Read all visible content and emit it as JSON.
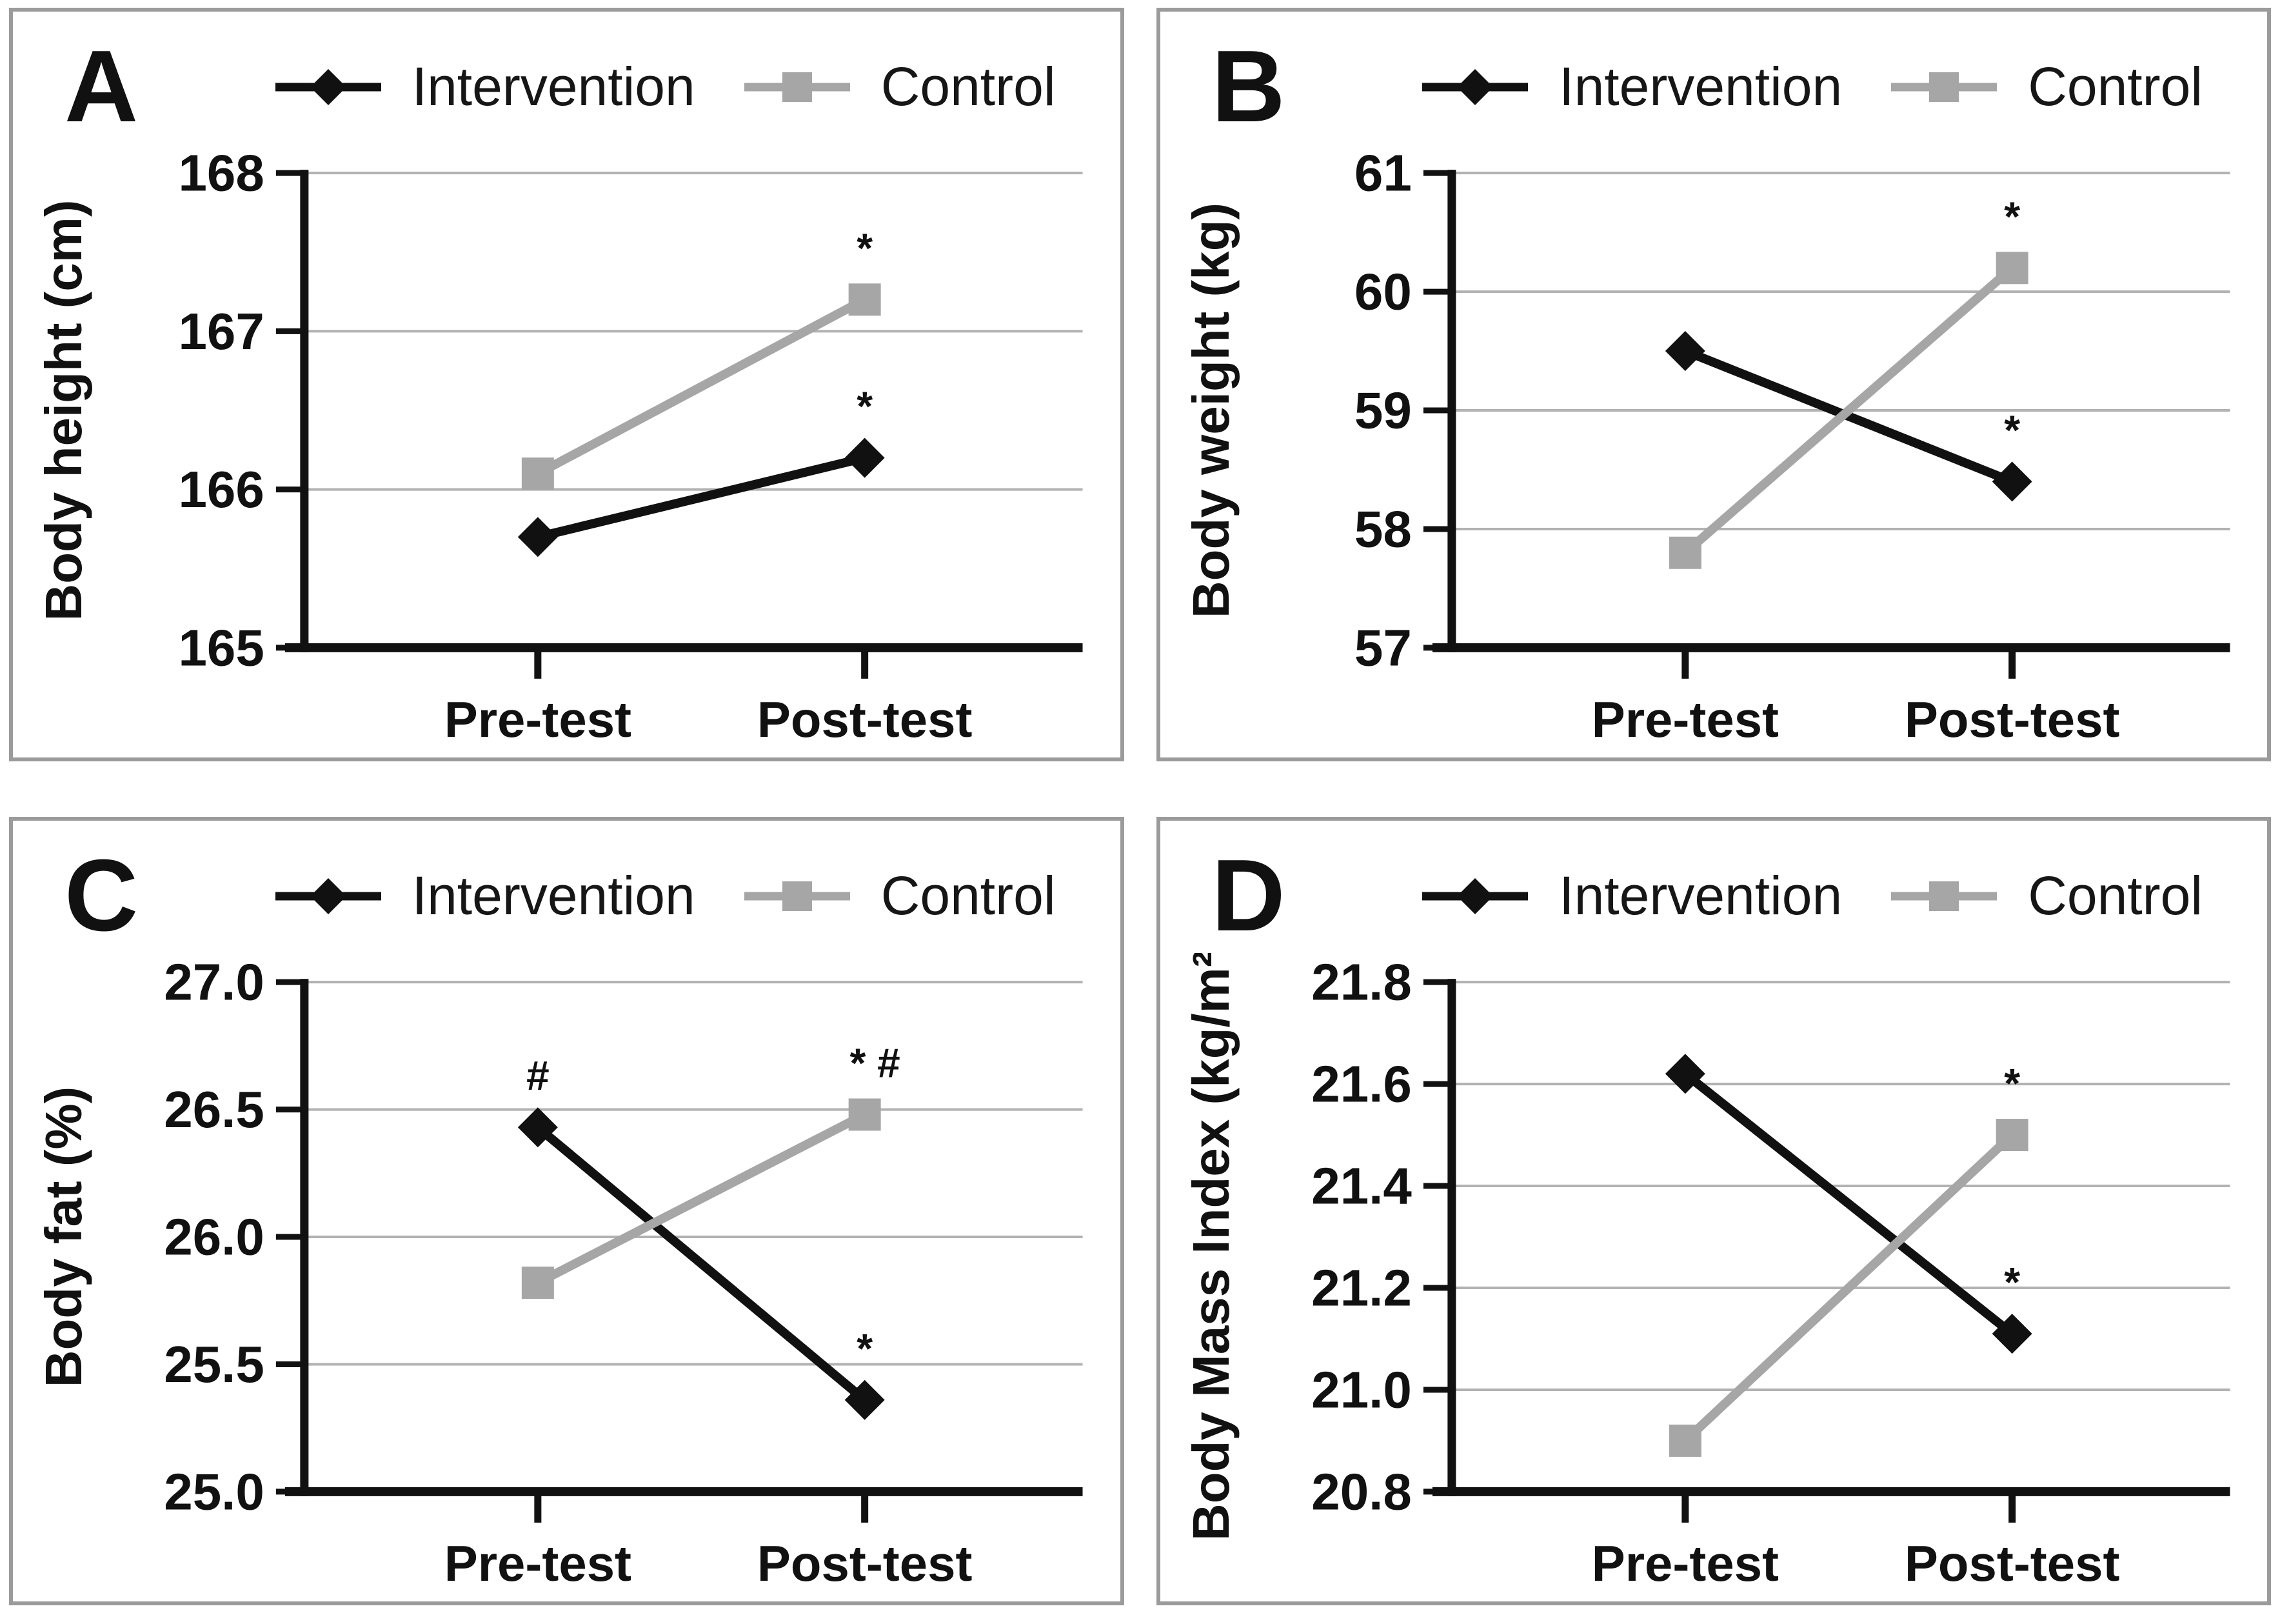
{
  "legend": {
    "intervention_label": "Intervention",
    "control_label": "Control"
  },
  "colors": {
    "intervention": "#111111",
    "control": "#a6a6a6",
    "gridline": "#b2b2b2",
    "axis": "#111111",
    "panel_border": "#9b9b9b",
    "annotation": "#111111"
  },
  "chart_data": [
    {
      "type": "line",
      "panel": "A",
      "categories": [
        "Pre-test",
        "Post-test"
      ],
      "ylabel": "Body height (cm)",
      "ylim": [
        165,
        168
      ],
      "yticks": [
        165,
        166,
        167,
        168
      ],
      "ytick_labels": [
        "165",
        "166",
        "167",
        "168"
      ],
      "grid": true,
      "legend_position": "top",
      "series": [
        {
          "name": "Intervention",
          "marker": "diamond",
          "color": "#111111",
          "values": [
            165.7,
            166.2
          ],
          "point_labels": [
            "",
            "*"
          ]
        },
        {
          "name": "Control",
          "marker": "square",
          "color": "#a6a6a6",
          "values": [
            166.1,
            167.2
          ],
          "point_labels": [
            "",
            "*"
          ]
        }
      ]
    },
    {
      "type": "line",
      "panel": "B",
      "categories": [
        "Pre-test",
        "Post-test"
      ],
      "ylabel": "Body weight (kg)",
      "ylim": [
        57,
        61
      ],
      "yticks": [
        57,
        58,
        59,
        60,
        61
      ],
      "ytick_labels": [
        "57",
        "58",
        "59",
        "60",
        "61"
      ],
      "grid": true,
      "legend_position": "top",
      "series": [
        {
          "name": "Intervention",
          "marker": "diamond",
          "color": "#111111",
          "values": [
            59.5,
            58.4
          ],
          "point_labels": [
            "",
            "*"
          ]
        },
        {
          "name": "Control",
          "marker": "square",
          "color": "#a6a6a6",
          "values": [
            57.8,
            60.2
          ],
          "point_labels": [
            "",
            "*"
          ]
        }
      ]
    },
    {
      "type": "line",
      "panel": "C",
      "categories": [
        "Pre-test",
        "Post-test"
      ],
      "ylabel": "Body fat (%)",
      "ylim": [
        25.0,
        27.0
      ],
      "yticks": [
        25.0,
        25.5,
        26.0,
        26.5,
        27.0
      ],
      "ytick_labels": [
        "25.0",
        "25.5",
        "26.0",
        "26.5",
        "27.0"
      ],
      "grid": true,
      "legend_position": "top",
      "series": [
        {
          "name": "Intervention",
          "marker": "diamond",
          "color": "#111111",
          "values": [
            26.43,
            25.36
          ],
          "point_labels": [
            "#",
            "*"
          ]
        },
        {
          "name": "Control",
          "marker": "square",
          "color": "#a6a6a6",
          "values": [
            25.82,
            26.48
          ],
          "point_labels": [
            "",
            "* #"
          ]
        }
      ]
    },
    {
      "type": "line",
      "panel": "D",
      "categories": [
        "Pre-test",
        "Post-test"
      ],
      "ylabel": "Body Mass Index (kg/m²)",
      "ylim": [
        20.8,
        21.8
      ],
      "yticks": [
        20.8,
        21.0,
        21.2,
        21.4,
        21.6,
        21.8
      ],
      "ytick_labels": [
        "20.8",
        "21.0",
        "21.2",
        "21.4",
        "21.6",
        "21.8"
      ],
      "grid": true,
      "legend_position": "top",
      "series": [
        {
          "name": "Intervention",
          "marker": "diamond",
          "color": "#111111",
          "values": [
            21.62,
            21.11
          ],
          "point_labels": [
            "",
            "*"
          ]
        },
        {
          "name": "Control",
          "marker": "square",
          "color": "#a6a6a6",
          "values": [
            20.9,
            21.5
          ],
          "point_labels": [
            "",
            "*"
          ]
        }
      ]
    }
  ]
}
